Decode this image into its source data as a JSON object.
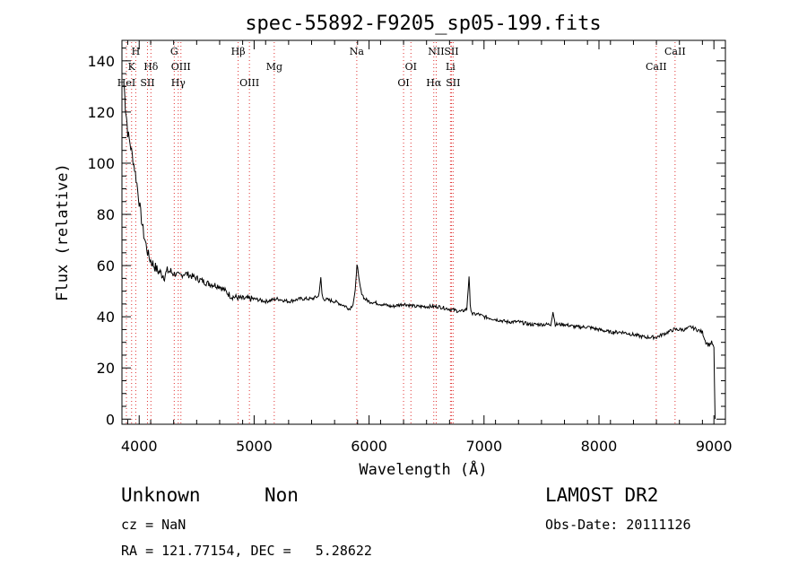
{
  "chart_data": {
    "type": "line",
    "title": "spec-55892-F9205_sp05-199.fits",
    "xlabel": "Wavelength (Å)",
    "ylabel": "Flux (relative)",
    "xlim": [
      3850,
      9100
    ],
    "ylim": [
      -2,
      148
    ],
    "x_ticks": [
      4000,
      5000,
      6000,
      7000,
      8000,
      9000
    ],
    "y_ticks": [
      0,
      20,
      40,
      60,
      80,
      100,
      120,
      140
    ],
    "grid": false,
    "series": [
      {
        "color": "#000000",
        "x": [
          3870,
          3880,
          3890,
          3900,
          3920,
          3940,
          3960,
          3980,
          4000,
          4020,
          4040,
          4060,
          4080,
          4100,
          4130,
          4160,
          4190,
          4220,
          4250,
          4300,
          4350,
          4400,
          4450,
          4500,
          4600,
          4700,
          4800,
          4900,
          5000,
          5100,
          5200,
          5300,
          5400,
          5500,
          5560,
          5580,
          5590,
          5600,
          5700,
          5750,
          5800,
          5830,
          5860,
          5880,
          5895,
          5910,
          5930,
          5960,
          6000,
          6100,
          6200,
          6300,
          6400,
          6500,
          6600,
          6700,
          6800,
          6850,
          6870,
          6880,
          6900,
          6950,
          7000,
          7100,
          7200,
          7300,
          7400,
          7500,
          7580,
          7600,
          7620,
          7700,
          7800,
          7900,
          8000,
          8100,
          8200,
          8300,
          8400,
          8450,
          8500,
          8550,
          8600,
          8650,
          8700,
          8750,
          8800,
          8850,
          8900,
          8930,
          8960,
          8980,
          9000,
          9010
        ],
        "y": [
          130,
          122,
          118,
          112,
          108,
          103,
          98,
          92,
          85,
          78,
          72,
          68,
          64,
          62,
          60,
          58,
          57,
          56,
          58,
          57,
          56,
          57,
          56,
          55,
          53,
          52,
          48,
          47,
          47,
          46,
          47,
          46,
          47,
          47,
          48,
          55,
          49,
          47,
          46,
          45,
          44,
          43,
          45,
          50,
          61,
          55,
          50,
          47,
          46,
          45,
          44,
          45,
          44,
          44,
          44,
          43,
          42,
          43,
          56,
          44,
          41,
          41,
          40,
          39,
          38,
          38,
          37,
          37,
          37,
          42,
          37,
          37,
          36,
          36,
          35,
          34,
          34,
          33,
          32,
          32,
          32,
          33,
          34,
          35,
          35,
          35,
          36,
          35,
          34,
          30,
          29,
          30,
          28,
          0
        ]
      }
    ],
    "annotations": [
      {
        "text": "H",
        "x": 3970,
        "row": 0
      },
      {
        "text": "K",
        "x": 3934,
        "row": 1
      },
      {
        "text": "HeI",
        "x": 3889,
        "row": 2
      },
      {
        "text": "Hδ",
        "x": 4102,
        "row": 1
      },
      {
        "text": "SII",
        "x": 4072,
        "row": 2
      },
      {
        "text": "G",
        "x": 4305,
        "row": 0
      },
      {
        "text": "OIII",
        "x": 4363,
        "row": 1
      },
      {
        "text": "Hγ",
        "x": 4340,
        "row": 2
      },
      {
        "text": "Hβ",
        "x": 4861,
        "row": 0
      },
      {
        "text": "Mg",
        "x": 5175,
        "row": 1
      },
      {
        "text": "OIII",
        "x": 4959,
        "row": 2
      },
      {
        "text": "Na",
        "x": 5893,
        "row": 0
      },
      {
        "text": "OI",
        "x": 6364,
        "row": 1
      },
      {
        "text": "OI",
        "x": 6300,
        "row": 2
      },
      {
        "text": "NII",
        "x": 6584,
        "row": 0
      },
      {
        "text": "SII",
        "x": 6717,
        "row": 0
      },
      {
        "text": "Li",
        "x": 6708,
        "row": 1
      },
      {
        "text": "Hα",
        "x": 6563,
        "row": 2
      },
      {
        "text": "SII",
        "x": 6731,
        "row": 2
      },
      {
        "text": "CaII",
        "x": 8662,
        "row": 0
      },
      {
        "text": "CaII",
        "x": 8498,
        "row": 1
      }
    ]
  },
  "info": {
    "class": "Unknown",
    "subclass": "Non",
    "survey": "LAMOST DR2",
    "cz": "cz = NaN",
    "obs_date": "Obs-Date: 20111126",
    "coords": "RA = 121.77154, DEC =   5.28622"
  }
}
